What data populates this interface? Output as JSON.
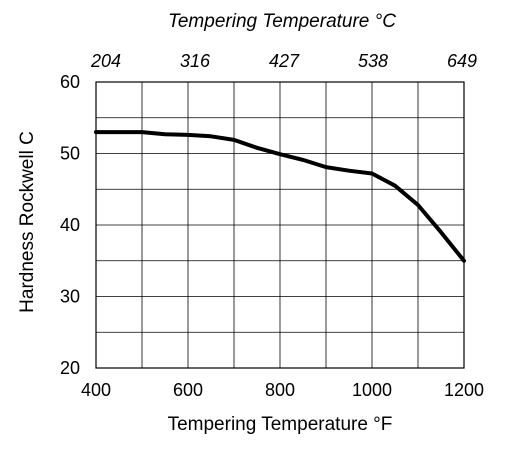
{
  "chart_data": {
    "type": "line",
    "title": "",
    "xlabel": "Tempering Temperature °F",
    "x2label": "Tempering Temperature °C",
    "ylabel": "Hardness Rockwell C",
    "xlim": [
      400,
      1200
    ],
    "ylim": [
      20,
      60
    ],
    "x_ticks": [
      "400",
      "600",
      "800",
      "1000",
      "1200"
    ],
    "x2_ticks": [
      "204",
      "316",
      "427",
      "538",
      "649"
    ],
    "y_ticks": [
      "20",
      "30",
      "40",
      "50",
      "60"
    ],
    "grid": true,
    "line_color": "#000000",
    "series": [
      {
        "x": [
          400,
          450,
          500,
          550,
          600,
          650,
          700,
          750,
          800,
          850,
          900,
          950,
          1000,
          1050,
          1100,
          1150,
          1200
        ],
        "values": [
          53,
          53,
          53,
          52.7,
          52.6,
          52.4,
          51.9,
          50.8,
          49.9,
          49.1,
          48.1,
          47.6,
          47.2,
          45.5,
          42.8,
          39.0,
          35.0
        ]
      }
    ]
  }
}
